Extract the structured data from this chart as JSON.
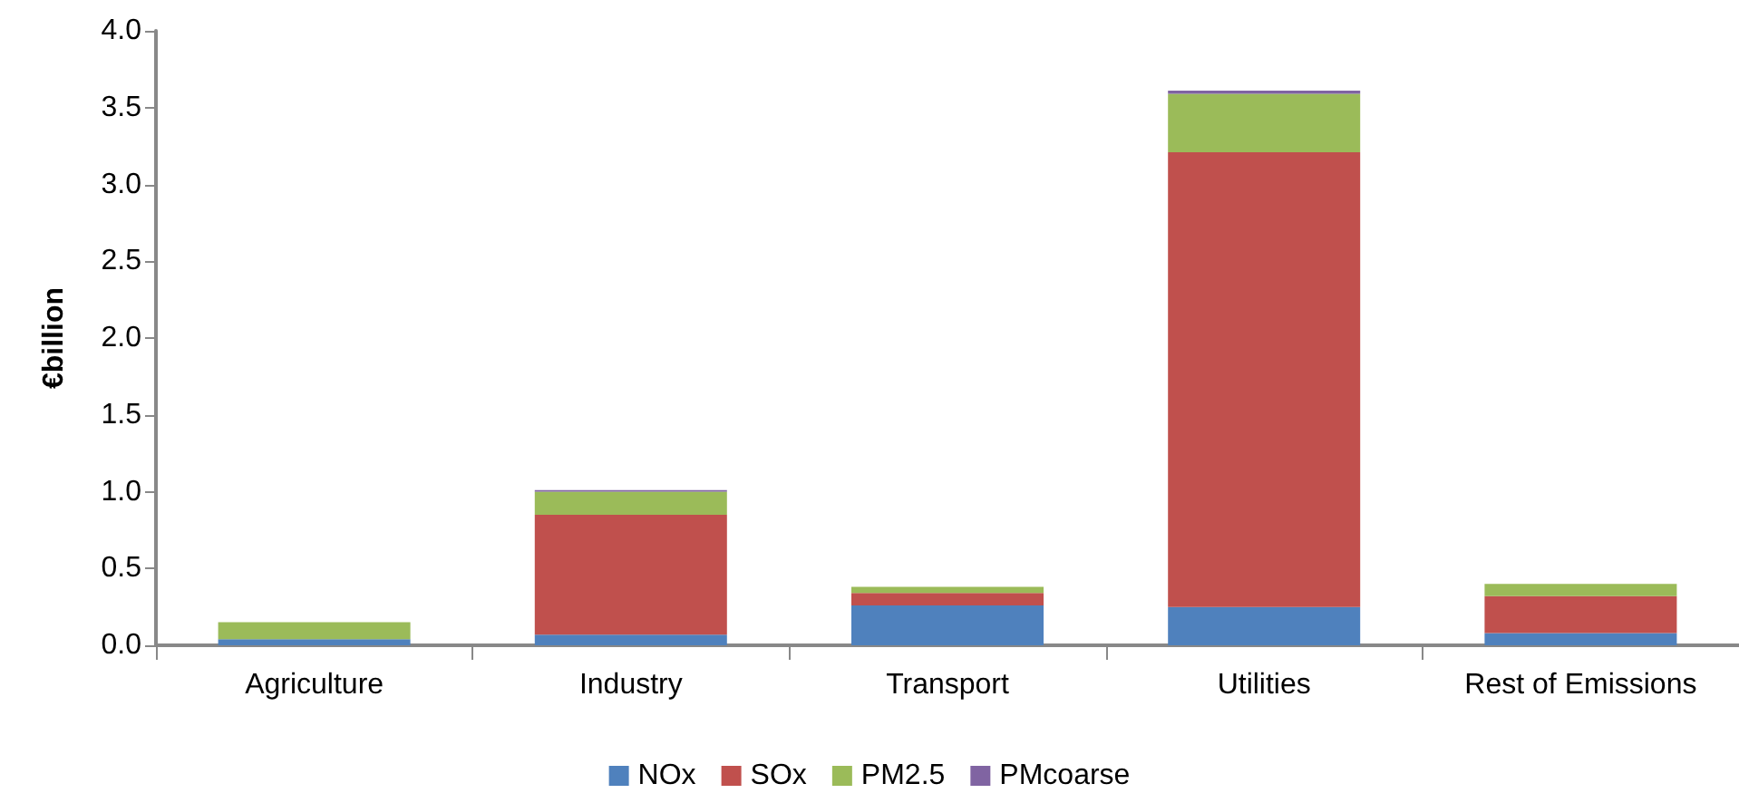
{
  "chart_data": {
    "type": "bar",
    "stacked": true,
    "ylabel": "€billion",
    "categories": [
      "Agriculture",
      "Industry",
      "Transport",
      "Utilities",
      "Rest of Emissions"
    ],
    "series": [
      {
        "name": "NOx",
        "color": "#4f81bd",
        "values": [
          0.04,
          0.07,
          0.26,
          0.25,
          0.08
        ]
      },
      {
        "name": "SOx",
        "color": "#c0504d",
        "values": [
          0,
          0.78,
          0.08,
          2.96,
          0.24
        ]
      },
      {
        "name": "PM2.5",
        "color": "#9bbb59",
        "values": [
          0.11,
          0.15,
          0.04,
          0.38,
          0.08
        ]
      },
      {
        "name": "PMcoarse",
        "color": "#8064a2",
        "values": [
          0,
          0.01,
          0,
          0.02,
          0
        ]
      }
    ],
    "ylim": [
      0,
      4
    ],
    "yticks": [
      {
        "value": 0,
        "label": "0.0"
      },
      {
        "value": 0.5,
        "label": "0.5"
      },
      {
        "value": 1,
        "label": "1.0"
      },
      {
        "value": 1.5,
        "label": "1.5"
      },
      {
        "value": 2,
        "label": "2.0"
      },
      {
        "value": 2.5,
        "label": "2.5"
      },
      {
        "value": 3,
        "label": "3.0"
      },
      {
        "value": 3.5,
        "label": "3.5"
      },
      {
        "value": 4,
        "label": "4.0"
      }
    ],
    "grid": false,
    "legend": "bottom"
  }
}
